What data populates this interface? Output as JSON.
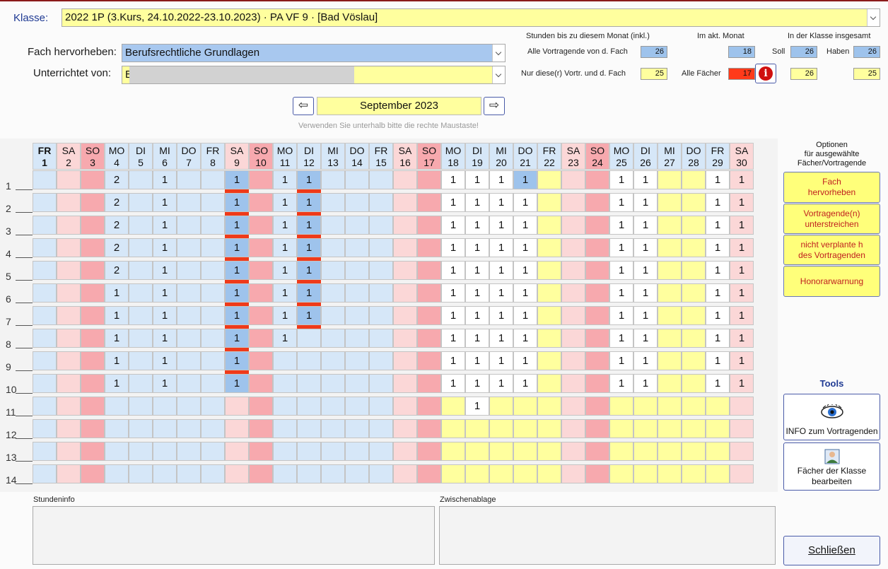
{
  "header": {
    "klasse_label": "Klasse:",
    "klasse_value": "2022 1P  (3.Kurs, 24.10.2022-23.10.2023) · PA VF 9 · [Bad Vöslau]",
    "fach_label": "Fach hervorheben:",
    "fach_value": "Berufsrechtliche Grundlagen",
    "unterrichtet_label": "Unterrichtet von:",
    "unterrichtet_value": "B"
  },
  "stats": {
    "head_bis": "Stunden bis zu diesem Monat (inkl.)",
    "head_akt": "Im akt. Monat",
    "head_ges": "In der Klasse insgesamt",
    "row1_label": "Alle Vortragende von d. Fach",
    "row1_bis": "26",
    "row1_akt": "18",
    "soll_label": "Soll",
    "row1_soll": "26",
    "haben_label": "Haben",
    "row1_haben": "26",
    "row2_label": "Nur diese(r) Vortr. und d. Fach",
    "row2_bis": "25",
    "alle_faecher_label": "Alle Fächer",
    "row2_akt": "17",
    "row2_soll": "26",
    "row2_haben": "25",
    "info_icon": "info-icon",
    "colors": {
      "blue": "#9ec3ec",
      "yellow": "#ffff9e",
      "red": "#ff3a1a"
    }
  },
  "nav": {
    "month": "September 2023",
    "prev_icon": "arrow-left-icon",
    "next_icon": "arrow-right-icon",
    "hint": "Verwenden Sie unterhalb bitte die rechte Maustaste!"
  },
  "calendar": {
    "days": [
      {
        "d": "FR",
        "n": "1",
        "t": "wd"
      },
      {
        "d": "SA",
        "n": "2",
        "t": "sa"
      },
      {
        "d": "SO",
        "n": "3",
        "t": "so"
      },
      {
        "d": "MO",
        "n": "4",
        "t": "wd"
      },
      {
        "d": "DI",
        "n": "5",
        "t": "wd"
      },
      {
        "d": "MI",
        "n": "6",
        "t": "wd"
      },
      {
        "d": "DO",
        "n": "7",
        "t": "wd"
      },
      {
        "d": "FR",
        "n": "8",
        "t": "wd"
      },
      {
        "d": "SA",
        "n": "9",
        "t": "sa"
      },
      {
        "d": "SO",
        "n": "10",
        "t": "so"
      },
      {
        "d": "MO",
        "n": "11",
        "t": "wd"
      },
      {
        "d": "DI",
        "n": "12",
        "t": "wd"
      },
      {
        "d": "MI",
        "n": "13",
        "t": "wd"
      },
      {
        "d": "DO",
        "n": "14",
        "t": "wd"
      },
      {
        "d": "FR",
        "n": "15",
        "t": "wd"
      },
      {
        "d": "SA",
        "n": "16",
        "t": "sa"
      },
      {
        "d": "SO",
        "n": "17",
        "t": "so"
      },
      {
        "d": "MO",
        "n": "18",
        "t": "wd"
      },
      {
        "d": "DI",
        "n": "19",
        "t": "wd"
      },
      {
        "d": "MI",
        "n": "20",
        "t": "wd"
      },
      {
        "d": "DO",
        "n": "21",
        "t": "wd"
      },
      {
        "d": "FR",
        "n": "22",
        "t": "wd"
      },
      {
        "d": "SA",
        "n": "23",
        "t": "sa"
      },
      {
        "d": "SO",
        "n": "24",
        "t": "so"
      },
      {
        "d": "MO",
        "n": "25",
        "t": "wd"
      },
      {
        "d": "DI",
        "n": "26",
        "t": "wd"
      },
      {
        "d": "MI",
        "n": "27",
        "t": "wd"
      },
      {
        "d": "DO",
        "n": "28",
        "t": "wd"
      },
      {
        "d": "FR",
        "n": "29",
        "t": "wd"
      },
      {
        "d": "SA",
        "n": "30",
        "t": "sa"
      }
    ],
    "row_labels": [
      "1",
      "2",
      "3",
      "4",
      "5",
      "6",
      "7",
      "8",
      "9",
      "10",
      "11",
      "12",
      "13",
      "14"
    ],
    "entries": [
      {
        "c": {
          "4": "2",
          "6": "1",
          "9": "1",
          "11": "1",
          "12": "1",
          "18": "1",
          "19": "1",
          "20": "1",
          "21": "1",
          "25": "1",
          "26": "1",
          "29": "1",
          "30": "1"
        },
        "hl": [
          "9",
          "12",
          "21"
        ],
        "bar": [
          "9",
          "12"
        ]
      },
      {
        "c": {
          "4": "2",
          "6": "1",
          "9": "1",
          "11": "1",
          "12": "1",
          "18": "1",
          "19": "1",
          "20": "1",
          "21": "1",
          "25": "1",
          "26": "1",
          "29": "1",
          "30": "1"
        },
        "hl": [
          "9",
          "12"
        ],
        "bar": [
          "9",
          "12"
        ]
      },
      {
        "c": {
          "4": "2",
          "6": "1",
          "9": "1",
          "11": "1",
          "12": "1",
          "18": "1",
          "19": "1",
          "20": "1",
          "21": "1",
          "25": "1",
          "26": "1",
          "29": "1",
          "30": "1"
        },
        "hl": [
          "9",
          "12"
        ],
        "bar": [
          "9",
          "12"
        ]
      },
      {
        "c": {
          "4": "2",
          "6": "1",
          "9": "1",
          "11": "1",
          "12": "1",
          "18": "1",
          "19": "1",
          "20": "1",
          "21": "1",
          "25": "1",
          "26": "1",
          "29": "1",
          "30": "1"
        },
        "hl": [
          "9",
          "12"
        ],
        "bar": [
          "9",
          "12"
        ]
      },
      {
        "c": {
          "4": "2",
          "6": "1",
          "9": "1",
          "11": "1",
          "12": "1",
          "18": "1",
          "19": "1",
          "20": "1",
          "21": "1",
          "25": "1",
          "26": "1",
          "29": "1",
          "30": "1"
        },
        "hl": [
          "9",
          "12"
        ],
        "bar": [
          "9",
          "12"
        ]
      },
      {
        "c": {
          "4": "1",
          "6": "1",
          "9": "1",
          "11": "1",
          "12": "1",
          "18": "1",
          "19": "1",
          "20": "1",
          "21": "1",
          "25": "1",
          "26": "1",
          "29": "1",
          "30": "1"
        },
        "hl": [
          "9",
          "12"
        ],
        "bar": [
          "9",
          "12"
        ]
      },
      {
        "c": {
          "4": "1",
          "6": "1",
          "9": "1",
          "11": "1",
          "12": "1",
          "18": "1",
          "19": "1",
          "20": "1",
          "21": "1",
          "25": "1",
          "26": "1",
          "29": "1",
          "30": "1"
        },
        "hl": [
          "9",
          "12"
        ],
        "bar": [
          "9",
          "12"
        ]
      },
      {
        "c": {
          "4": "1",
          "6": "1",
          "9": "1",
          "11": "1",
          "18": "1",
          "19": "1",
          "20": "1",
          "21": "1",
          "25": "1",
          "26": "1",
          "29": "1",
          "30": "1"
        },
        "hl": [
          "9"
        ],
        "bar": [
          "9"
        ]
      },
      {
        "c": {
          "4": "1",
          "6": "1",
          "9": "1",
          "18": "1",
          "19": "1",
          "20": "1",
          "21": "1",
          "25": "1",
          "26": "1",
          "29": "1",
          "30": "1"
        },
        "hl": [
          "9"
        ],
        "bar": [
          "9"
        ]
      },
      {
        "c": {
          "4": "1",
          "6": "1",
          "9": "1",
          "18": "1",
          "19": "1",
          "20": "1",
          "21": "1",
          "25": "1",
          "26": "1",
          "29": "1",
          "30": "1"
        },
        "hl": [
          "9"
        ],
        "bar": []
      },
      {
        "c": {
          "19": "1"
        },
        "hl": [],
        "bar": []
      },
      {
        "c": {},
        "hl": [],
        "bar": []
      },
      {
        "c": {},
        "hl": [],
        "bar": []
      },
      {
        "c": {},
        "hl": [],
        "bar": []
      }
    ],
    "colors": {
      "wd_early": "#d6e7f8",
      "sa": "#fbd7d7",
      "so": "#f7a9ae",
      "yellow": "#ffff9e",
      "white": "#ffffff",
      "hl": "#9ec3ec",
      "so_late": "#f7a9ae",
      "sa_late": "#fbd7d7"
    }
  },
  "side": {
    "optionen_title": "Optionen\nfür ausgewählte\nFächer/Vortragende",
    "btn_fach": "Fach\nhervorheben",
    "btn_vortr": "Vortragende(n)\nunterstreichen",
    "btn_nicht": "nicht verplante h\ndes Vortragenden",
    "btn_honorar": "Honorarwarnung",
    "tools_title": "Tools",
    "btn_info": "INFO zum Vortragenden",
    "btn_faecher": "Fächer der Klasse\nbearbeiten",
    "btn_close": "Schließen"
  },
  "bottom": {
    "stundeninfo_label": "Stundeninfo",
    "zwischenablage_label": "Zwischenablage"
  }
}
